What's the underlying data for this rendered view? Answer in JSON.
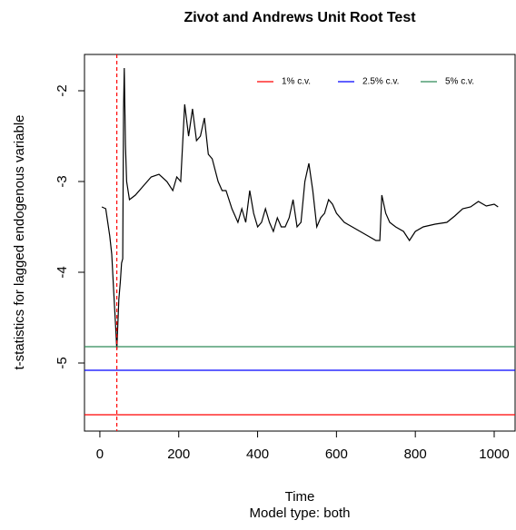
{
  "chart_data": {
    "type": "line",
    "title": "Zivot and Andrews Unit Root Test",
    "y_label": "t-statistics for lagged endogenous variable",
    "x_label": "Time",
    "subtitle": "Model type: both",
    "xlim": [
      -39,
      1053
    ],
    "ylim": [
      -5.75,
      -1.6
    ],
    "xticks": [
      0,
      200,
      400,
      600,
      800,
      1000
    ],
    "yticks": [
      -5,
      -4,
      -3,
      -2
    ],
    "legend_position": "topright",
    "series": [
      {
        "color": "#000000",
        "x": [
          5,
          15,
          20,
          25,
          30,
          35,
          40,
          43,
          48,
          52,
          55,
          58,
          60,
          62,
          65,
          68,
          75,
          90,
          110,
          130,
          150,
          170,
          185,
          195,
          205,
          215,
          225,
          235,
          245,
          255,
          265,
          275,
          285,
          300,
          310,
          320,
          335,
          350,
          360,
          370,
          380,
          390,
          400,
          410,
          420,
          430,
          440,
          450,
          460,
          470,
          480,
          490,
          500,
          510,
          520,
          530,
          540,
          550,
          560,
          570,
          580,
          590,
          600,
          620,
          640,
          660,
          680,
          700,
          710,
          715,
          725,
          735,
          750,
          770,
          785,
          800,
          820,
          850,
          880,
          900,
          920,
          940,
          960,
          980,
          1000,
          1010
        ],
        "values": [
          -3.28,
          -3.3,
          -3.45,
          -3.6,
          -3.8,
          -4.2,
          -4.6,
          -4.85,
          -4.3,
          -4.1,
          -3.9,
          -3.85,
          -2.2,
          -1.75,
          -2.6,
          -3.0,
          -3.2,
          -3.15,
          -3.05,
          -2.95,
          -2.92,
          -3.0,
          -3.1,
          -2.95,
          -3.0,
          -2.15,
          -2.5,
          -2.2,
          -2.55,
          -2.5,
          -2.3,
          -2.7,
          -2.75,
          -3.0,
          -3.1,
          -3.1,
          -3.3,
          -3.45,
          -3.3,
          -3.45,
          -3.1,
          -3.35,
          -3.5,
          -3.45,
          -3.3,
          -3.45,
          -3.55,
          -3.4,
          -3.5,
          -3.5,
          -3.4,
          -3.2,
          -3.5,
          -3.45,
          -3.0,
          -2.8,
          -3.1,
          -3.5,
          -3.4,
          -3.35,
          -3.2,
          -3.25,
          -3.35,
          -3.45,
          -3.5,
          -3.55,
          -3.6,
          -3.65,
          -3.65,
          -3.15,
          -3.35,
          -3.45,
          -3.5,
          -3.55,
          -3.65,
          -3.55,
          -3.5,
          -3.47,
          -3.45,
          -3.38,
          -3.3,
          -3.28,
          -3.22,
          -3.27,
          -3.25,
          -3.28
        ]
      }
    ],
    "reference_lines": [
      {
        "name": "1% c.v.",
        "value": -5.57,
        "color": "#ff0000"
      },
      {
        "name": "2.5% c.v.",
        "value": -5.08,
        "color": "#0000ff"
      },
      {
        "name": "5% c.v.",
        "value": -4.82,
        "color": "#2e8b57"
      }
    ],
    "break_line": {
      "value": 43,
      "color": "#ff0000"
    }
  }
}
